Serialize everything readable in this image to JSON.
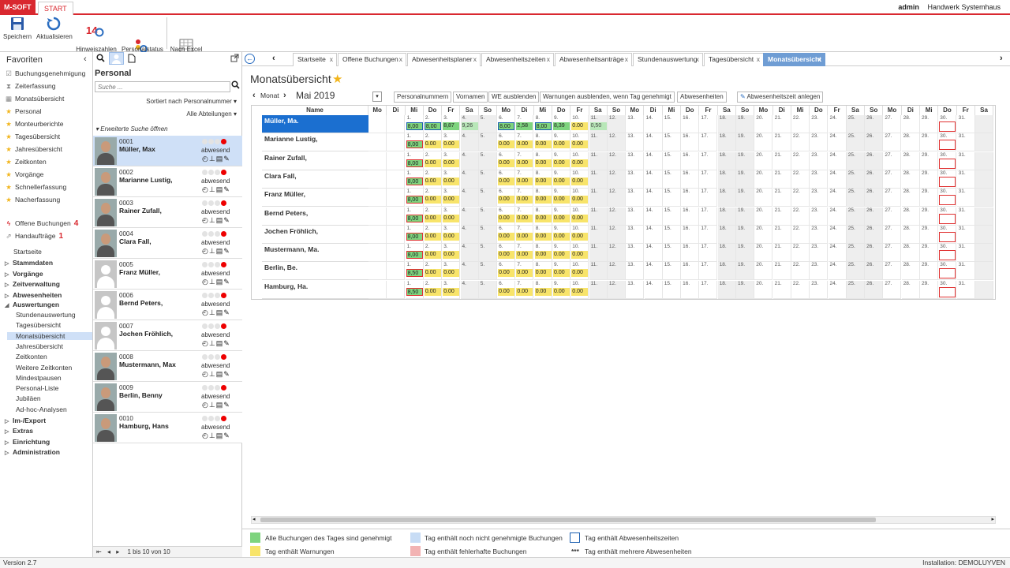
{
  "brand": {
    "logo": "M-SOFT",
    "start_tab": "START"
  },
  "user": {
    "name": "admin",
    "company": "Handwerk Systemhaus"
  },
  "ribbon": [
    {
      "label": "Speichern",
      "icon": "save-icon"
    },
    {
      "label": "Aktualisieren",
      "icon": "refresh-icon"
    },
    {
      "label": "Hinweiszahlen\naktualisieren",
      "icon": "notification-refresh-icon",
      "count": "14"
    },
    {
      "label": "Personalstatus\naktualisieren",
      "icon": "personnel-status-icon"
    },
    {
      "label": "Nach Excel\nexportieren",
      "icon": "excel-export-icon"
    }
  ],
  "sidebar": {
    "title": "Favoriten",
    "favorites": [
      {
        "label": "Buchungsgenehmigung",
        "icon": "approval-icon"
      },
      {
        "label": "Zeiterfassung",
        "icon": "time-entry-icon"
      },
      {
        "label": "Monatsübersicht",
        "icon": "calendar-icon"
      },
      {
        "label": "Personal",
        "icon": "star-icon"
      },
      {
        "label": "Monteurberichte",
        "icon": "star-icon"
      },
      {
        "label": "Tagesübersicht",
        "icon": "star-icon"
      },
      {
        "label": "Jahresübersicht",
        "icon": "star-icon"
      },
      {
        "label": "Zeitkonten",
        "icon": "star-icon"
      },
      {
        "label": "Vorgänge",
        "icon": "star-icon"
      },
      {
        "label": "Schnellerfassung",
        "icon": "star-icon"
      },
      {
        "label": "Nacherfassung",
        "icon": "star-icon"
      }
    ],
    "offene_buchungen": {
      "label": "Offene Buchungen",
      "count": "4"
    },
    "handauftraege": {
      "label": "Handaufträge",
      "count": "1"
    },
    "startseite": "Startseite",
    "groups_top": [
      "Stammdaten",
      "Vorgänge",
      "Zeitverwaltung",
      "Abwesenheiten"
    ],
    "auswertungen": "Auswertungen",
    "auswertungen_items": [
      "Stundenauswertung",
      "Tagesübersicht",
      "Monatsübersicht",
      "Jahresübersicht",
      "Zeitkonten",
      "Weitere Zeitkonten",
      "Mindestpausen",
      "Personal-Liste",
      "Jubiläen",
      "Ad-hoc-Analysen"
    ],
    "groups_bottom": [
      "Im-/Export",
      "Extras",
      "Einrichtung",
      "Administration"
    ]
  },
  "personal": {
    "title": "Personal",
    "search_placeholder": "Suche ...",
    "sort": "Sortiert nach Personalnummer",
    "filter": "Alle Abteilungen",
    "advanced": "Erweiterte Suche öffnen",
    "status": "abwesend",
    "pager": "1 bis 10 von 10",
    "list": [
      {
        "num": "0001",
        "name": "Müller, Max",
        "photo": true
      },
      {
        "num": "0002",
        "name": "Marianne Lustig,",
        "photo": true
      },
      {
        "num": "0003",
        "name": "Rainer Zufall,",
        "photo": true
      },
      {
        "num": "0004",
        "name": "Clara Fall,",
        "photo": true
      },
      {
        "num": "0005",
        "name": "Franz Müller,",
        "photo": false
      },
      {
        "num": "0006",
        "name": "Bernd Peters,",
        "photo": false
      },
      {
        "num": "0007",
        "name": "Jochen Fröhlich,",
        "photo": false
      },
      {
        "num": "0008",
        "name": "Mustermann, Max",
        "photo": true
      },
      {
        "num": "0009",
        "name": "Berlin, Benny",
        "photo": true
      },
      {
        "num": "0010",
        "name": "Hamburg, Hans",
        "photo": true
      }
    ]
  },
  "tabs": [
    {
      "label": "Startseite"
    },
    {
      "label": "Offene Buchungen"
    },
    {
      "label": "Abwesenheitsplaner"
    },
    {
      "label": "Abwesenheitszeiten"
    },
    {
      "label": "Abwesenheitsanträge"
    },
    {
      "label": "Stundenauswertung"
    },
    {
      "label": "Tagesübersicht"
    },
    {
      "label": "Monatsübersicht",
      "active": true
    }
  ],
  "main": {
    "title": "Monatsübersicht",
    "month_nav": "Monat",
    "month": "Mai 2019",
    "buttons": [
      "Personalnummern",
      "Vornamen",
      "WE ausblenden",
      "Warnungen ausblenden, wenn Tag genehmigt",
      "Abwesenheiten"
    ],
    "add_button": "Abwesenheitszeit anlegen",
    "name_header": "Name",
    "day_headers": [
      "Mo",
      "Di",
      "Mi",
      "Do",
      "Fr",
      "Sa",
      "So",
      "Mo",
      "Di",
      "Mi",
      "Do",
      "Fr",
      "Sa",
      "So",
      "Mo",
      "Di",
      "Mi",
      "Do",
      "Fr",
      "Sa",
      "So",
      "Mo",
      "Di",
      "Mi",
      "Do",
      "Fr",
      "Sa",
      "So",
      "Mo",
      "Di",
      "Mi",
      "Do",
      "Fr",
      "Sa"
    ],
    "rows": [
      {
        "name": "Müller, Ma.",
        "values": {
          "1": [
            "8,00",
            "green bbox"
          ],
          "2": [
            "8,00",
            "green bbox"
          ],
          "3": [
            "8,87",
            "green"
          ],
          "4": [
            "9,26",
            "ltgreen"
          ],
          "6": [
            "8,00",
            "green bbox"
          ],
          "7": [
            "2,58",
            "green"
          ],
          "8": [
            "8,00",
            "green bbox"
          ],
          "9": [
            "8,39",
            "green"
          ],
          "10": [
            "0.00",
            "yellow"
          ],
          "11": [
            "0,50",
            "ltgreen"
          ]
        }
      },
      {
        "name": "Marianne Lustig,",
        "values": {
          "1": [
            "8,00",
            "green rbox"
          ],
          "2": [
            "0.00",
            "yellow"
          ],
          "3": [
            "0.00",
            "yellow"
          ],
          "6": [
            "0.00",
            "yellow"
          ],
          "7": [
            "0.00",
            "yellow"
          ],
          "8": [
            "0.00",
            "yellow"
          ],
          "9": [
            "0.00",
            "yellow"
          ],
          "10": [
            "0.00",
            "yellow"
          ]
        }
      },
      {
        "name": "Rainer Zufall,",
        "values": {
          "1": [
            "8,00",
            "green rbox"
          ],
          "2": [
            "0.00",
            "yellow"
          ],
          "3": [
            "0.00",
            "yellow"
          ],
          "6": [
            "0.00",
            "yellow"
          ],
          "7": [
            "0.00",
            "yellow"
          ],
          "8": [
            "0.00",
            "yellow"
          ],
          "9": [
            "0.00",
            "yellow"
          ],
          "10": [
            "0.00",
            "yellow"
          ]
        }
      },
      {
        "name": "Clara Fall,",
        "values": {
          "1": [
            "8,00",
            "green rbox"
          ],
          "2": [
            "0.00",
            "yellow"
          ],
          "3": [
            "0.00",
            "yellow"
          ],
          "6": [
            "0.00",
            "yellow"
          ],
          "7": [
            "0.00",
            "yellow"
          ],
          "8": [
            "0.00",
            "yellow"
          ],
          "9": [
            "0.00",
            "yellow"
          ],
          "10": [
            "0.00",
            "yellow"
          ]
        }
      },
      {
        "name": "Franz Müller,",
        "values": {
          "1": [
            "8,00",
            "green rbox"
          ],
          "2": [
            "0.00",
            "yellow"
          ],
          "3": [
            "0.00",
            "yellow"
          ],
          "6": [
            "0.00",
            "yellow"
          ],
          "7": [
            "0.00",
            "yellow"
          ],
          "8": [
            "0.00",
            "yellow"
          ],
          "9": [
            "0.00",
            "yellow"
          ],
          "10": [
            "0.00",
            "yellow"
          ]
        }
      },
      {
        "name": "Bernd Peters,",
        "values": {
          "1": [
            "8,00",
            "green rbox"
          ],
          "2": [
            "0.00",
            "yellow"
          ],
          "3": [
            "0.00",
            "yellow"
          ],
          "6": [
            "0.00",
            "yellow"
          ],
          "7": [
            "0.00",
            "yellow"
          ],
          "8": [
            "0.00",
            "yellow"
          ],
          "9": [
            "0.00",
            "yellow"
          ],
          "10": [
            "0.00",
            "yellow"
          ]
        }
      },
      {
        "name": "Jochen Fröhlich,",
        "values": {
          "1": [
            "8,00",
            "green rbox"
          ],
          "2": [
            "0.00",
            "yellow"
          ],
          "3": [
            "0.00",
            "yellow"
          ],
          "6": [
            "0.00",
            "yellow"
          ],
          "7": [
            "0.00",
            "yellow"
          ],
          "8": [
            "0.00",
            "yellow"
          ],
          "9": [
            "0.00",
            "yellow"
          ],
          "10": [
            "0.00",
            "yellow"
          ]
        }
      },
      {
        "name": "Mustermann, Ma.",
        "values": {
          "1": [
            "8,00",
            "green rbox"
          ],
          "2": [
            "0.00",
            "yellow"
          ],
          "3": [
            "0.00",
            "yellow"
          ],
          "6": [
            "0.00",
            "yellow"
          ],
          "7": [
            "0.00",
            "yellow"
          ],
          "8": [
            "0.00",
            "yellow"
          ],
          "9": [
            "0.00",
            "yellow"
          ],
          "10": [
            "0.00",
            "yellow"
          ]
        }
      },
      {
        "name": "Berlin, Be.",
        "values": {
          "1": [
            "8,50",
            "green rbox"
          ],
          "2": [
            "0.00",
            "yellow"
          ],
          "3": [
            "0.00",
            "yellow"
          ],
          "6": [
            "0.00",
            "yellow"
          ],
          "7": [
            "0.00",
            "yellow"
          ],
          "8": [
            "0.00",
            "yellow"
          ],
          "9": [
            "0.00",
            "yellow"
          ],
          "10": [
            "0.00",
            "yellow"
          ]
        }
      },
      {
        "name": "Hamburg, Ha.",
        "values": {
          "1": [
            "8,50",
            "green rbox"
          ],
          "2": [
            "0.00",
            "yellow"
          ],
          "3": [
            "0.00",
            "yellow"
          ],
          "6": [
            "0.00",
            "yellow"
          ],
          "7": [
            "0.00",
            "yellow"
          ],
          "8": [
            "0.00",
            "yellow"
          ],
          "9": [
            "0.00",
            "yellow"
          ],
          "10": [
            "0.00",
            "yellow"
          ]
        }
      }
    ],
    "marked_empty_day": "30"
  },
  "legend": [
    {
      "label": "Alle Buchungen des Tages sind genehmigt",
      "color": "#7ed47e"
    },
    {
      "label": "Tag enthält Warnungen",
      "color": "#f8e46a"
    },
    {
      "label": "Tag enthält noch nicht genehmigte Buchungen",
      "color": "#c7dcf5"
    },
    {
      "label": "Tag enthält fehlerhafte Buchungen",
      "color": "#f2b3b3"
    },
    {
      "label": "Tag enthält Abwesenheitszeiten",
      "color": "#ffffff"
    },
    {
      "label": "Tag enthält mehrere Abwesenheiten",
      "marker": "***"
    }
  ],
  "footer": {
    "version": "Version 2.7",
    "installation": "Installation: DEMOLUYVEN"
  }
}
